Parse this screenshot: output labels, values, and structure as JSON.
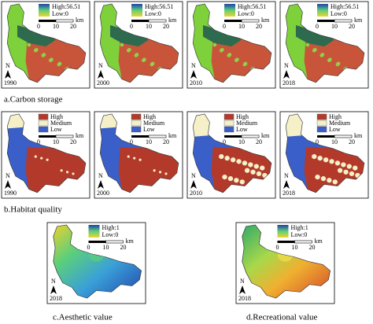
{
  "carbon": {
    "caption": "a.Carbon storage",
    "legend_high": "High:56.51",
    "legend_low": "Low:0",
    "years": [
      "1990",
      "2000",
      "2010",
      "2018"
    ]
  },
  "habitat": {
    "caption": "b.Habitat quality",
    "legend": [
      "High",
      "Medium",
      "Low"
    ],
    "years": [
      "1990",
      "2000",
      "2010",
      "2018"
    ]
  },
  "aesthetic": {
    "caption": "c.Aesthetic value",
    "legend_high": "High:1",
    "legend_low": "Low:0",
    "year": "2018"
  },
  "recreational": {
    "caption": "d.Recreational value",
    "legend_high": "High:1",
    "legend_low": "Low:0",
    "year": "2018"
  },
  "scale": {
    "labels": [
      "0",
      "10",
      "20"
    ],
    "unit": "km"
  },
  "north": "N"
}
